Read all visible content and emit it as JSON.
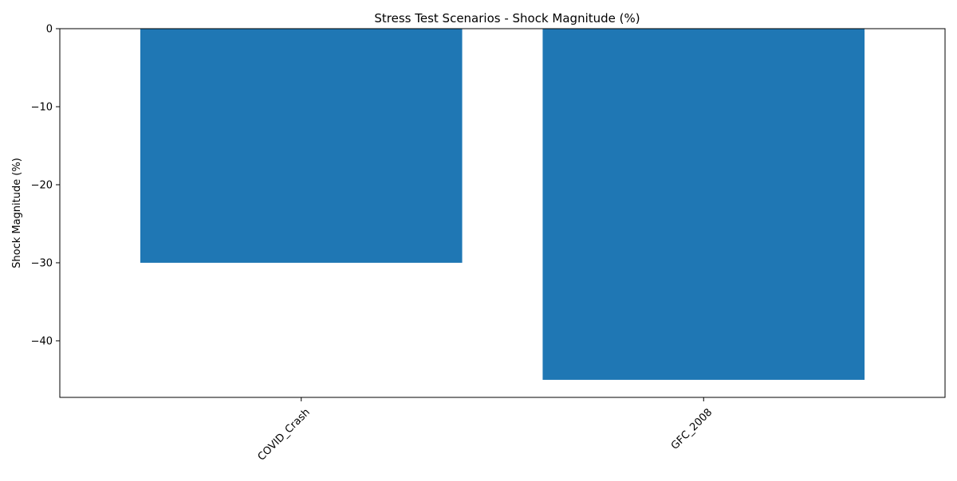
{
  "chart_data": {
    "type": "bar",
    "title": "Stress Test Scenarios - Shock Magnitude (%)",
    "xlabel": "",
    "ylabel": "Shock Magnitude (%)",
    "categories": [
      "COVID_Crash",
      "GFC_2008"
    ],
    "values": [
      -30,
      -45
    ],
    "ylim": [
      -47.25,
      0
    ],
    "yticks": [
      0,
      -10,
      -20,
      -30,
      -40
    ],
    "ytick_labels": [
      "0",
      "−10",
      "−20",
      "−30",
      "−40"
    ],
    "bar_color": "#1f77b4",
    "grid": false,
    "legend": "none"
  }
}
